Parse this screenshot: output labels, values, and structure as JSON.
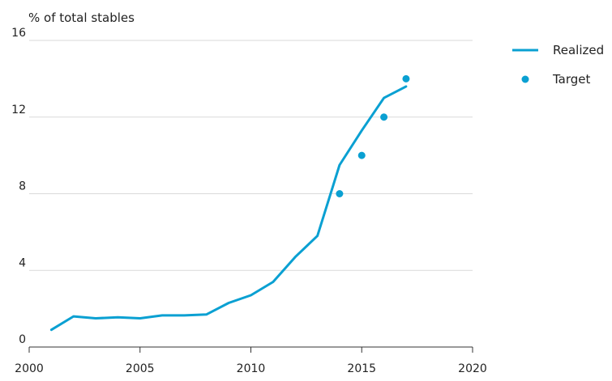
{
  "chart_data": {
    "type": "line",
    "title": "",
    "xlabel": "",
    "ylabel": "% of total stables",
    "xlim": [
      2000,
      2020
    ],
    "ylim": [
      0,
      16
    ],
    "x_ticks": [
      "2000",
      "2005",
      "2010",
      "2015",
      "2020"
    ],
    "y_ticks": [
      "0",
      "4",
      "8",
      "12",
      "16"
    ],
    "grid": "horizontal",
    "legend_position": "top-right",
    "series": [
      {
        "name": "Realized",
        "style": "line",
        "color": "#0aa0d2",
        "x": [
          2001,
          2002,
          2003,
          2004,
          2005,
          2006,
          2007,
          2008,
          2009,
          2010,
          2011,
          2012,
          2013,
          2014,
          2015,
          2016,
          2017
        ],
        "y": [
          0.9,
          1.6,
          1.5,
          1.55,
          1.5,
          1.65,
          1.65,
          1.7,
          2.3,
          2.7,
          3.4,
          4.7,
          5.8,
          9.5,
          11.3,
          13.0,
          13.6
        ]
      },
      {
        "name": "Target",
        "style": "scatter",
        "color": "#0aa0d2",
        "x": [
          2014,
          2015,
          2016,
          2017
        ],
        "y": [
          8,
          10,
          12,
          14
        ]
      }
    ]
  }
}
